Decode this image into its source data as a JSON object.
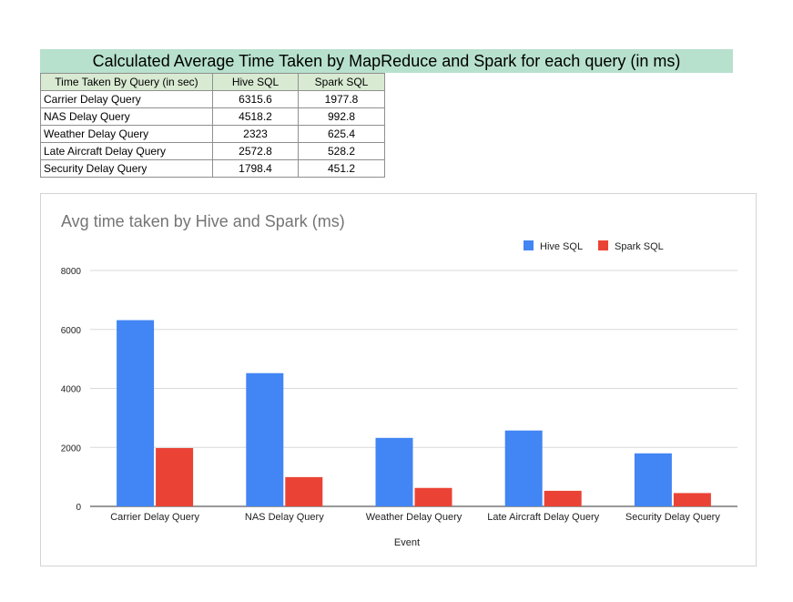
{
  "banner": {
    "title": "Calculated Average Time Taken by MapReduce and Spark for each query (in ms)"
  },
  "table": {
    "headers": [
      "Time Taken By Query (in sec)",
      "Hive SQL",
      "Spark SQL"
    ],
    "rows": [
      [
        "Carrier Delay Query",
        "6315.6",
        "1977.8"
      ],
      [
        "NAS Delay Query",
        "4518.2",
        "992.8"
      ],
      [
        "Weather Delay Query",
        "2323",
        "625.4"
      ],
      [
        "Late Aircraft Delay Query",
        "2572.8",
        "528.2"
      ],
      [
        "Security Delay Query",
        "1798.4",
        "451.2"
      ]
    ]
  },
  "chart_data": {
    "type": "bar",
    "title": "Avg time taken by Hive and Spark (ms)",
    "xlabel": "Event",
    "ylabel": "",
    "categories": [
      "Carrier Delay Query",
      "NAS Delay Query",
      "Weather Delay Query",
      "Late Aircraft Delay Query",
      "Security Delay Query"
    ],
    "series": [
      {
        "name": "Hive SQL",
        "color": "#4285f4",
        "values": [
          6315.6,
          4518.2,
          2323,
          2572.8,
          1798.4
        ]
      },
      {
        "name": "Spark SQL",
        "color": "#ea4335",
        "values": [
          1977.8,
          992.8,
          625.4,
          528.2,
          451.2
        ]
      }
    ],
    "ylim": [
      0,
      8000
    ],
    "yticks": [
      "0",
      "2000",
      "4000",
      "6000",
      "8000"
    ],
    "grid": true,
    "legend": "top-right"
  }
}
